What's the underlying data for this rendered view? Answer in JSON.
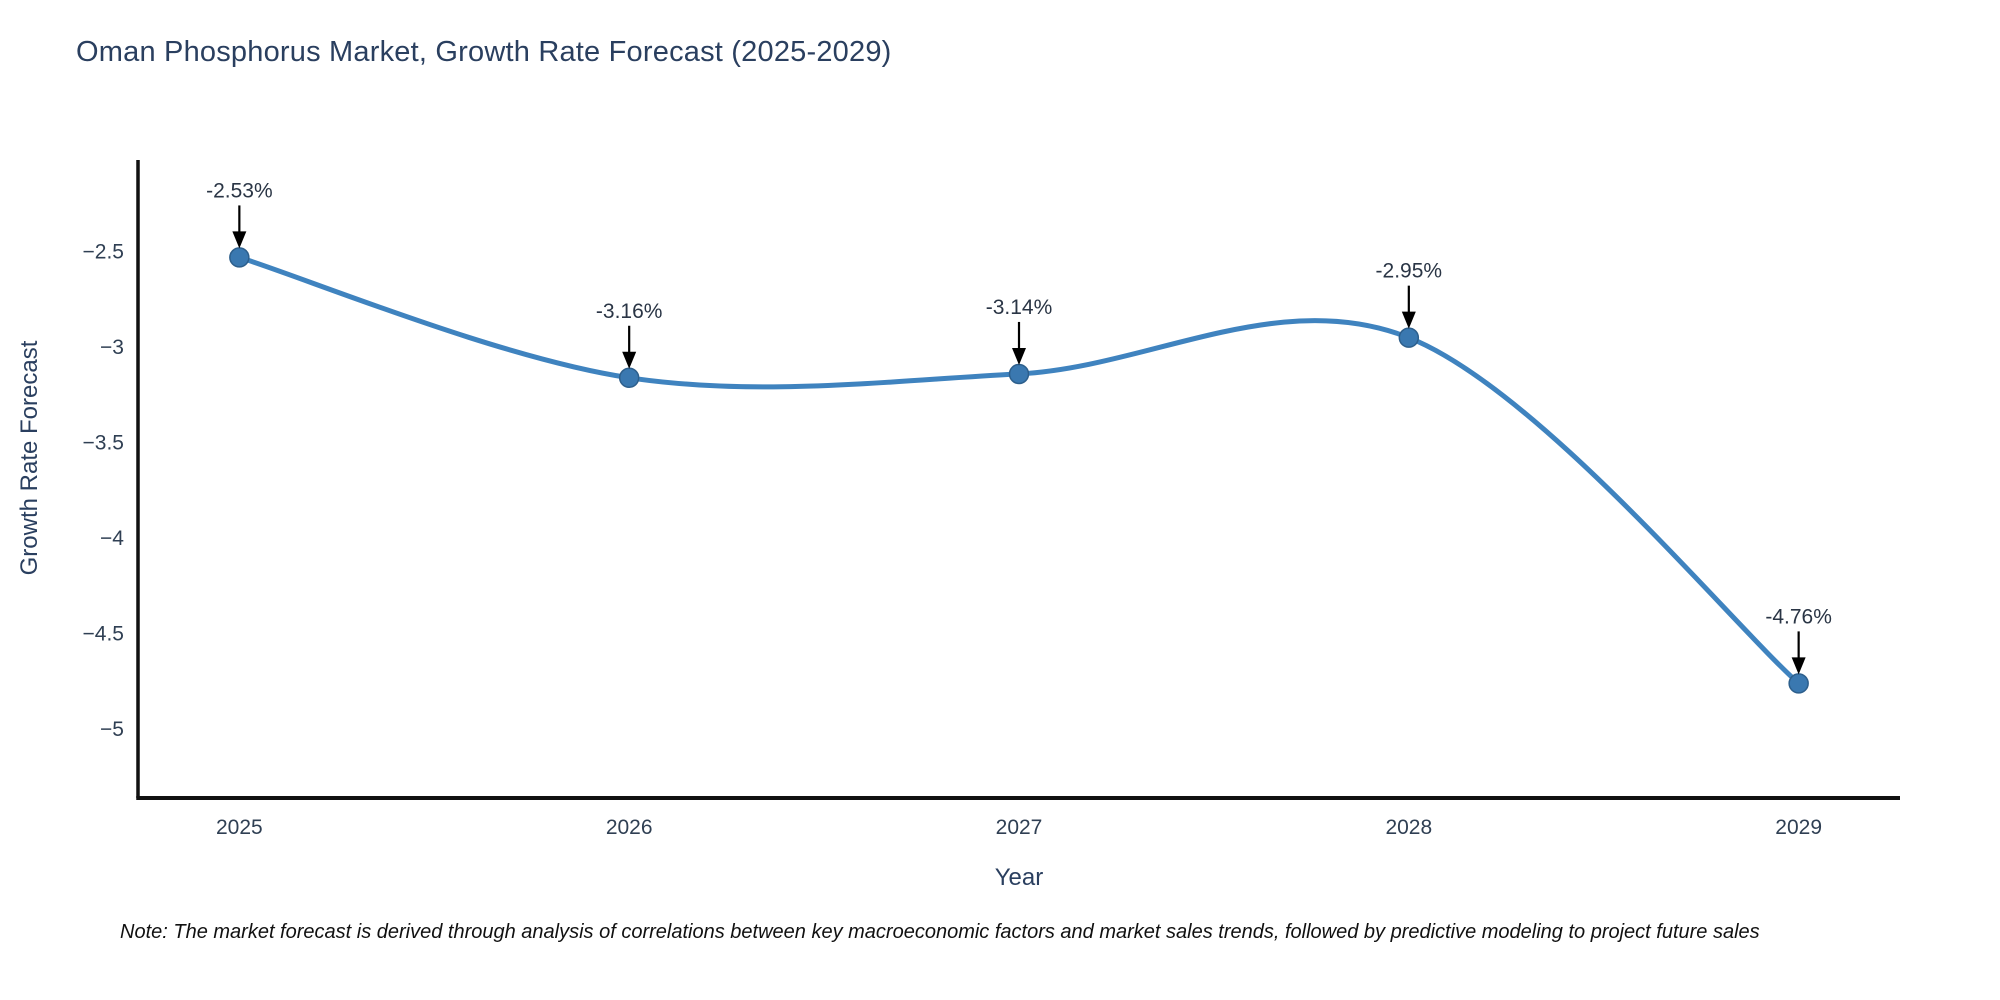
{
  "title": "Oman Phosphorus Market, Growth Rate Forecast (2025-2029)",
  "note": "Note: The market forecast is derived through analysis of correlations between key macroeconomic factors and market sales trends, followed by predictive modeling to project future sales",
  "chart_data": {
    "type": "line",
    "line_shape": "spline",
    "title": "Oman Phosphorus Market, Growth Rate Forecast (2025-2029)",
    "xlabel": "Year",
    "ylabel": "Growth Rate Forecast",
    "x": [
      2025,
      2026,
      2027,
      2028,
      2029
    ],
    "values": [
      -2.53,
      -3.16,
      -3.14,
      -2.95,
      -4.76
    ],
    "point_labels": [
      "-2.53%",
      "-3.16%",
      "-3.14%",
      "-2.95%",
      "-4.76%"
    ],
    "xticks": [
      2025,
      2026,
      2027,
      2028,
      2029
    ],
    "xtick_labels": [
      "2025",
      "2026",
      "2027",
      "2028",
      "2029"
    ],
    "yticks": [
      -2.5,
      -3,
      -3.5,
      -4,
      -4.5,
      -5
    ],
    "ytick_labels": [
      "−2.5",
      "−3",
      "−3.5",
      "−4",
      "−4.5",
      "−5"
    ],
    "xlim": [
      2024.74,
      2029.26
    ],
    "ylim": [
      -5.36,
      -2.02
    ],
    "grid": false,
    "legend": "none",
    "annotations_style": "black-down-arrows",
    "colors": {
      "line": "#3f83bf",
      "marker_fill": "#3a78b0",
      "marker_edge": "#2d5f8c",
      "axis_line": "#111111",
      "arrow": "#000000",
      "title_text": "#2a3f5f",
      "tick_text": "#2f3f53",
      "annotation_text": "#2a3545"
    }
  }
}
